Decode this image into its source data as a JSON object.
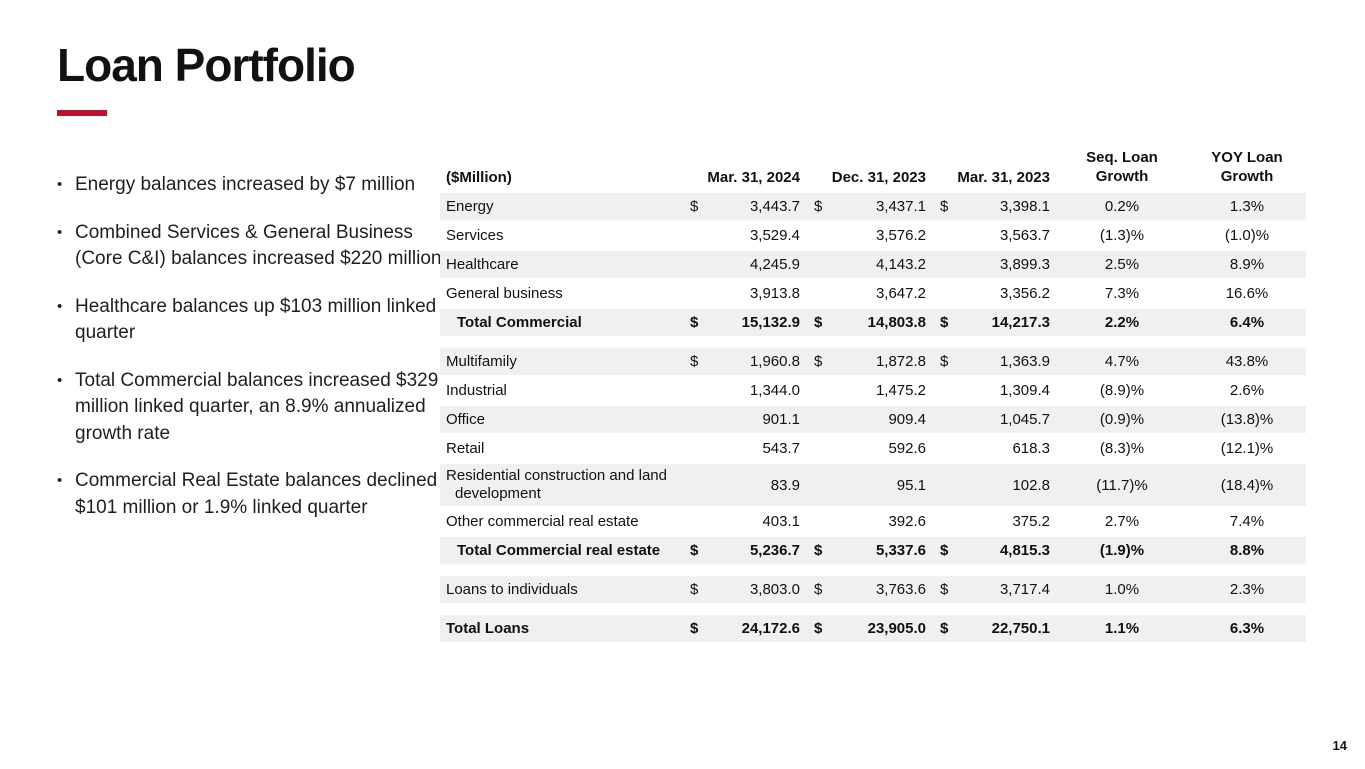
{
  "slide": {
    "title": "Loan Portfolio",
    "page_number": "14",
    "accent_color": "#C01030",
    "row_shade_color": "#F0F0F0"
  },
  "bullets": [
    "Energy balances increased by $7 million",
    "Combined Services & General Business (Core C&I) balances increased $220 million",
    "Healthcare balances up $103 million linked quarter",
    "Total Commercial balances increased $329 million linked quarter, an 8.9% annualized growth rate",
    "Commercial Real Estate balances declined $101 million or 1.9% linked quarter"
  ],
  "table": {
    "unit_label": "($Million)",
    "columns": [
      "Mar. 31, 2024",
      "Dec. 31, 2023",
      "Mar. 31, 2023",
      "Seq. Loan Growth",
      "YOY Loan Growth"
    ],
    "rows": [
      {
        "label": "Energy",
        "dollar": true,
        "values": [
          "3,443.7",
          "3,437.1",
          "3,398.1"
        ],
        "seq": "0.2%",
        "yoy": "1.3%",
        "shaded": true
      },
      {
        "label": "Services",
        "dollar": false,
        "values": [
          "3,529.4",
          "3,576.2",
          "3,563.7"
        ],
        "seq": "(1.3)%",
        "yoy": "(1.0)%",
        "shaded": false
      },
      {
        "label": "Healthcare",
        "dollar": false,
        "values": [
          "4,245.9",
          "4,143.2",
          "3,899.3"
        ],
        "seq": "2.5%",
        "yoy": "8.9%",
        "shaded": true
      },
      {
        "label": "General business",
        "dollar": false,
        "values": [
          "3,913.8",
          "3,647.2",
          "3,356.2"
        ],
        "seq": "7.3%",
        "yoy": "16.6%",
        "shaded": false
      },
      {
        "label": "Total Commercial",
        "dollar": true,
        "values": [
          "15,132.9",
          "14,803.8",
          "14,217.3"
        ],
        "seq": "2.2%",
        "yoy": "6.4%",
        "shaded": true,
        "bold": true,
        "indent": true,
        "gap_after": true
      },
      {
        "label": "Multifamily",
        "dollar": true,
        "values": [
          "1,960.8",
          "1,872.8",
          "1,363.9"
        ],
        "seq": "4.7%",
        "yoy": "43.8%",
        "shaded": true
      },
      {
        "label": "Industrial",
        "dollar": false,
        "values": [
          "1,344.0",
          "1,475.2",
          "1,309.4"
        ],
        "seq": "(8.9)%",
        "yoy": "2.6%",
        "shaded": false
      },
      {
        "label": "Office",
        "dollar": false,
        "values": [
          "901.1",
          "909.4",
          "1,045.7"
        ],
        "seq": "(0.9)%",
        "yoy": "(13.8)%",
        "shaded": true
      },
      {
        "label": "Retail",
        "dollar": false,
        "values": [
          "543.7",
          "592.6",
          "618.3"
        ],
        "seq": "(8.3)%",
        "yoy": "(12.1)%",
        "shaded": false
      },
      {
        "label": "Residential construction and land development",
        "dollar": false,
        "values": [
          "83.9",
          "95.1",
          "102.8"
        ],
        "seq": "(11.7)%",
        "yoy": "(18.4)%",
        "shaded": true,
        "two_line": true
      },
      {
        "label": "Other commercial real estate",
        "dollar": false,
        "values": [
          "403.1",
          "392.6",
          "375.2"
        ],
        "seq": "2.7%",
        "yoy": "7.4%",
        "shaded": false
      },
      {
        "label": "Total Commercial real estate",
        "dollar": true,
        "values": [
          "5,236.7",
          "5,337.6",
          "4,815.3"
        ],
        "seq": "(1.9)%",
        "yoy": "8.8%",
        "shaded": true,
        "bold": true,
        "indent": true,
        "gap_after": true
      },
      {
        "label": "Loans to individuals",
        "dollar": true,
        "values": [
          "3,803.0",
          "3,763.6",
          "3,717.4"
        ],
        "seq": "1.0%",
        "yoy": "2.3%",
        "shaded": true,
        "gap_after": true
      },
      {
        "label": "Total Loans",
        "dollar": true,
        "values": [
          "24,172.6",
          "23,905.0",
          "22,750.1"
        ],
        "seq": "1.1%",
        "yoy": "6.3%",
        "shaded": true,
        "bold": true
      }
    ]
  }
}
